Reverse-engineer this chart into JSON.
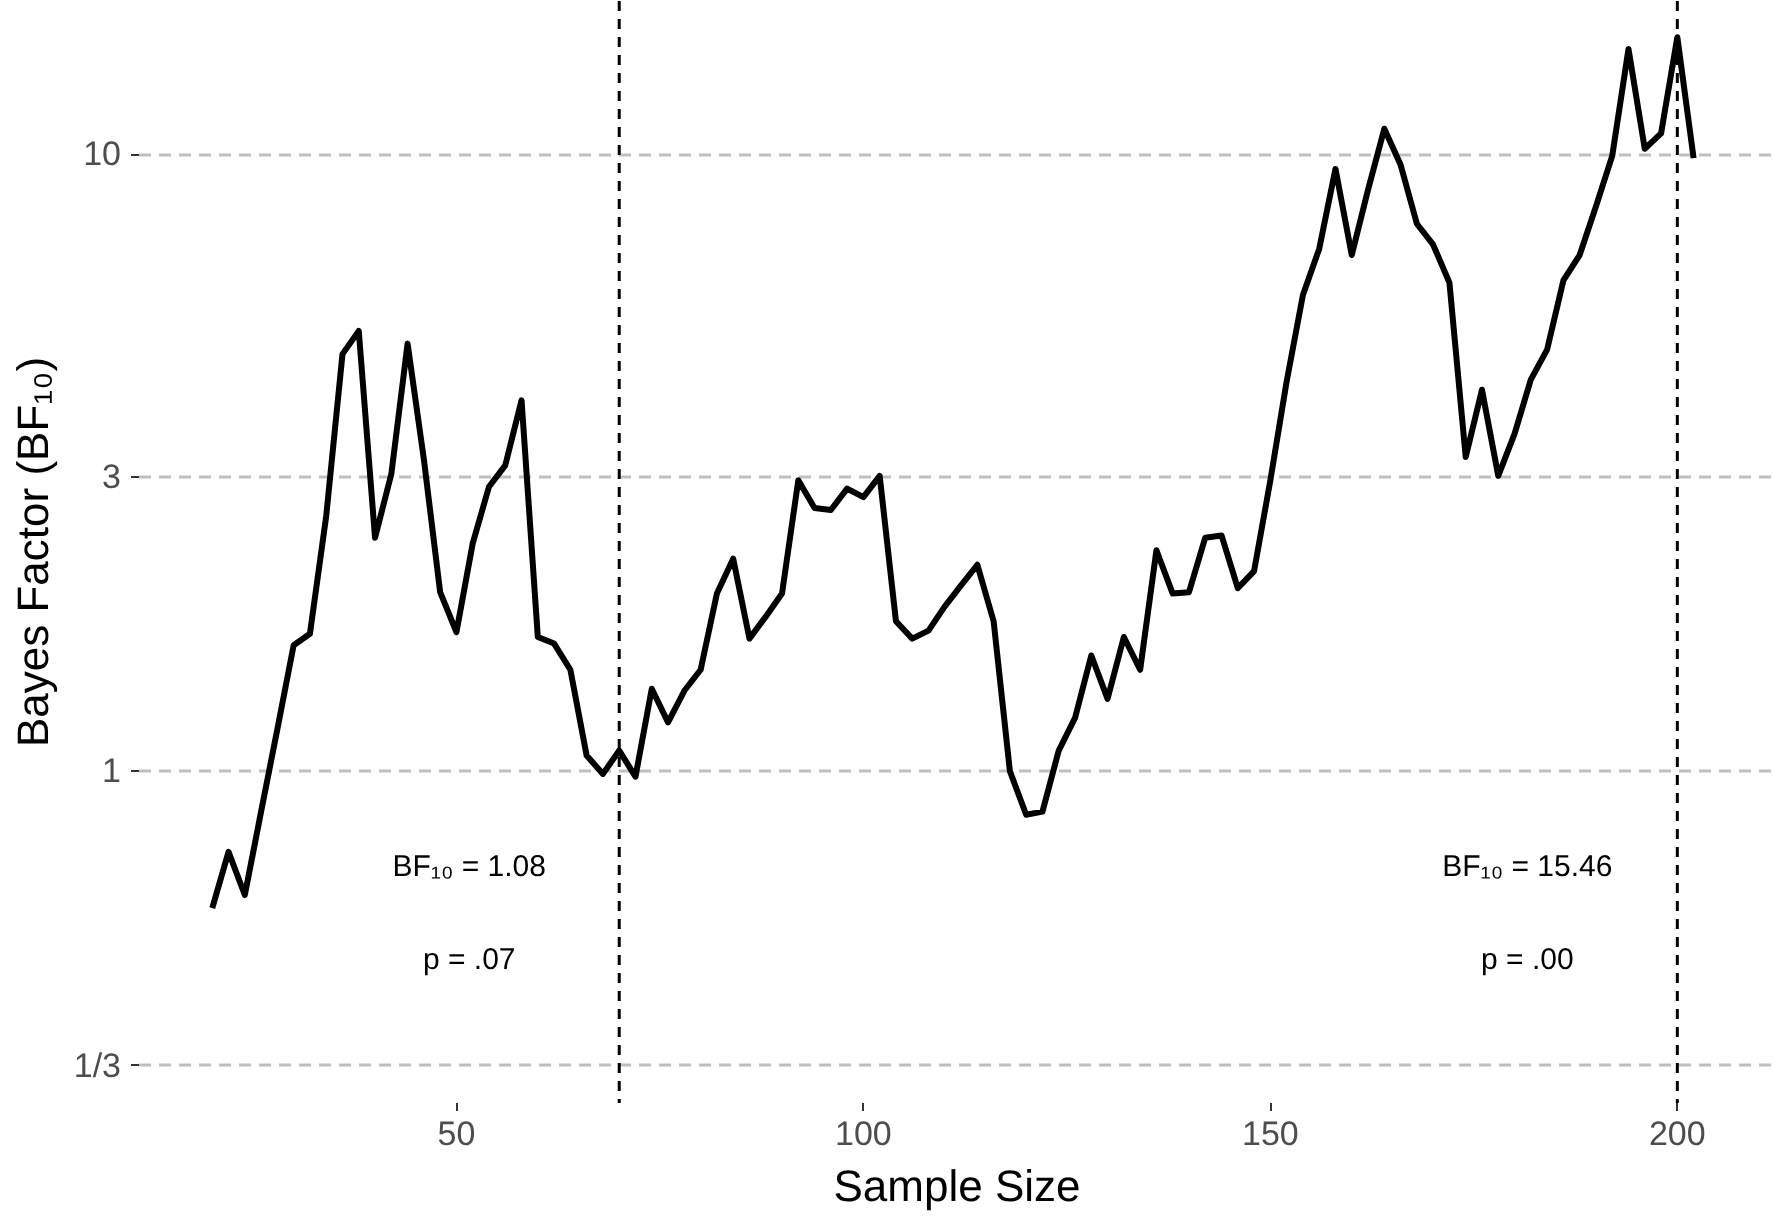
{
  "chart_data": {
    "type": "line",
    "xlabel": "Sample Size",
    "ylabel": "Bayes Factor (BF₁₀)",
    "x": [
      20,
      22,
      24,
      26,
      28,
      30,
      32,
      34,
      36,
      38,
      40,
      42,
      44,
      46,
      48,
      50,
      52,
      54,
      56,
      58,
      60,
      62,
      64,
      66,
      68,
      70,
      72,
      74,
      76,
      78,
      80,
      82,
      84,
      86,
      88,
      90,
      92,
      94,
      96,
      98,
      100,
      102,
      104,
      106,
      108,
      110,
      112,
      114,
      116,
      118,
      120,
      122,
      124,
      126,
      128,
      130,
      132,
      134,
      136,
      138,
      140,
      142,
      144,
      146,
      148,
      150,
      152,
      154,
      156,
      158,
      160,
      162,
      164,
      166,
      168,
      170,
      172,
      174,
      176,
      178,
      180,
      182,
      184,
      186,
      188,
      190,
      192,
      194,
      196,
      198,
      200,
      202
    ],
    "series": [
      {
        "color": "#000000",
        "values": [
          0.6,
          0.74,
          0.63,
          0.86,
          1.17,
          1.6,
          1.67,
          2.59,
          4.74,
          5.17,
          2.39,
          3.03,
          4.93,
          3.2,
          1.95,
          1.68,
          2.34,
          2.89,
          3.13,
          3.99,
          1.65,
          1.61,
          1.46,
          1.06,
          0.99,
          1.08,
          0.98,
          1.36,
          1.2,
          1.35,
          1.46,
          1.94,
          2.21,
          1.64,
          1.78,
          1.94,
          2.96,
          2.67,
          2.65,
          2.87,
          2.78,
          3.01,
          1.75,
          1.64,
          1.69,
          1.85,
          2.0,
          2.16,
          1.75,
          1.0,
          0.85,
          0.86,
          1.08,
          1.22,
          1.54,
          1.31,
          1.65,
          1.46,
          2.28,
          1.94,
          1.95,
          2.39,
          2.41,
          1.98,
          2.11,
          2.96,
          4.28,
          5.91,
          7.02,
          9.46,
          6.86,
          8.75,
          10.99,
          9.61,
          7.71,
          7.13,
          6.19,
          3.23,
          4.15,
          3.01,
          3.52,
          4.31,
          4.82,
          6.24,
          6.86,
          8.22,
          9.93,
          14.8,
          10.2,
          10.8,
          15.46,
          9.85
        ]
      }
    ],
    "log": true,
    "xlim": [
      11,
      212
    ],
    "ylim": [
      0.29,
      17.7
    ],
    "xticks": [
      50,
      100,
      150,
      200
    ],
    "yticks": [
      {
        "value": 0.3333,
        "label": "1/3"
      },
      1,
      3,
      10
    ],
    "grid": "y",
    "line_style": "solid",
    "ref_lines": [
      {
        "axis": "x",
        "value": 70,
        "color": "#000000",
        "line_style": "dashed"
      },
      {
        "axis": "x",
        "value": 200,
        "color": "#000000",
        "line_style": "dashed"
      }
    ],
    "annotations": [
      "BF₁₀ = 1.08",
      "p = .07",
      "BF₁₀ = 15.46",
      "p = .00"
    ]
  }
}
